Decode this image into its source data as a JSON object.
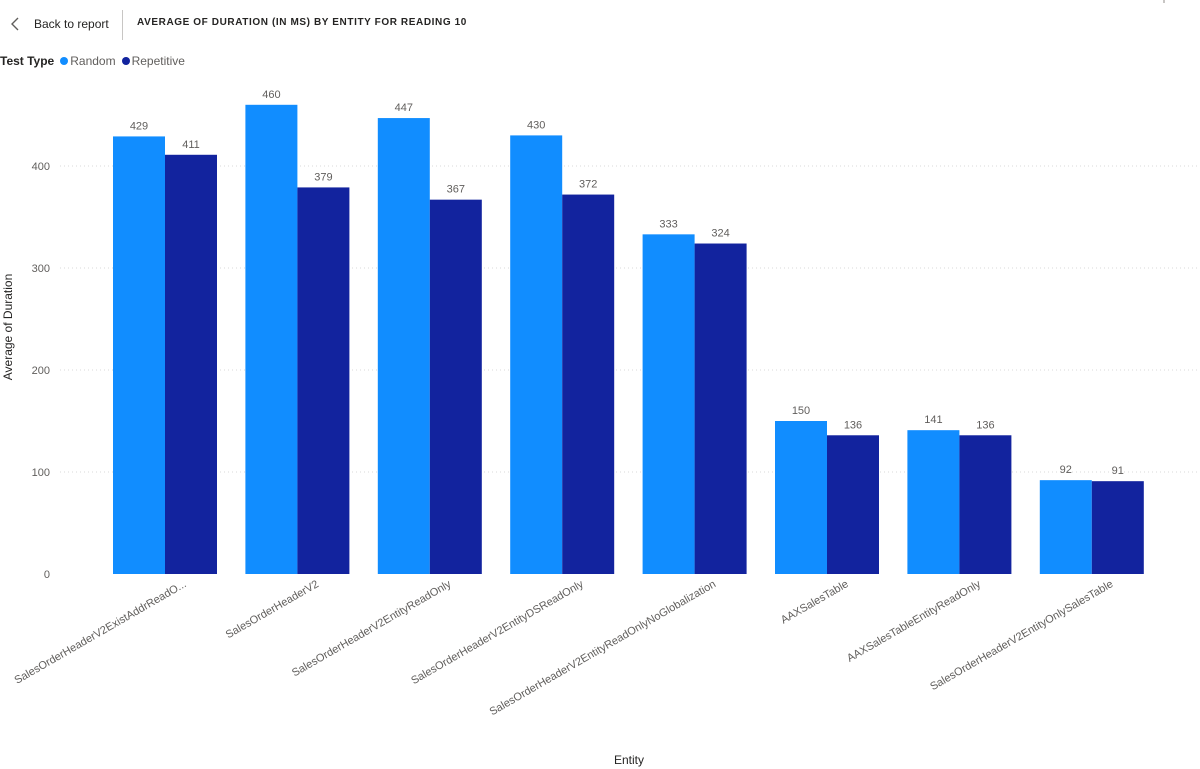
{
  "header": {
    "back_label": "Back to report",
    "title": "AVERAGE OF DURATION (IN MS) BY ENTITY FOR READING 10"
  },
  "legend": {
    "title": "Test Type",
    "items": [
      {
        "label": "Random",
        "color": "#118DFF"
      },
      {
        "label": "Repetitive",
        "color": "#12239E"
      }
    ]
  },
  "chart_data": {
    "type": "bar",
    "title": "AVERAGE OF DURATION (IN MS) BY ENTITY FOR READING 10",
    "xlabel": "Entity",
    "ylabel": "Average of Duration",
    "ylim": [
      0,
      480
    ],
    "yticks": [
      0,
      100,
      200,
      300,
      400
    ],
    "grid": true,
    "legend_position": "top-left",
    "categories": [
      "SalesOrderHeaderV2ExistAddrReadO...",
      "SalesOrderHeaderV2",
      "SalesOrderHeaderV2EntityReadOnly",
      "SalesOrderHeaderV2EntityDSReadOnly",
      "SalesOrderHeaderV2EntityReadOnlyNoGlobalization",
      "AAXSalesTable",
      "AAXSalesTableEntityReadOnly",
      "SalesOrderHeaderV2EntityOnlySalesTable"
    ],
    "series": [
      {
        "name": "Random",
        "color": "#118DFF",
        "values": [
          429,
          460,
          447,
          430,
          333,
          150,
          141,
          92
        ]
      },
      {
        "name": "Repetitive",
        "color": "#12239E",
        "values": [
          411,
          379,
          367,
          372,
          324,
          136,
          136,
          91
        ]
      }
    ]
  }
}
